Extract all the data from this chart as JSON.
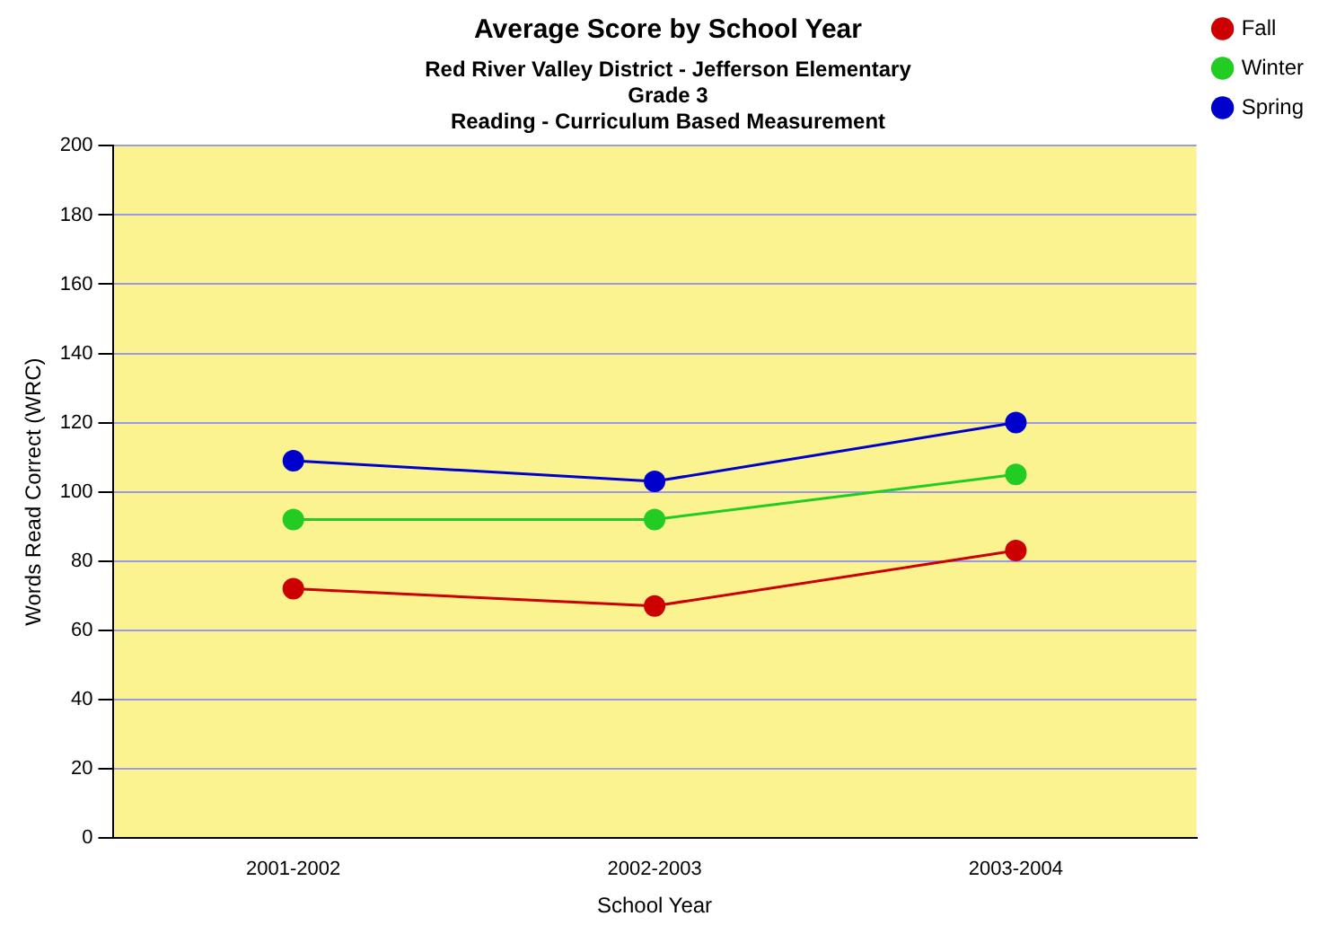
{
  "chart_data": {
    "type": "line",
    "title": "Average Score by School Year",
    "subtitle": "Red River Valley District - Jefferson Elementary\nGrade 3\nReading - Curriculum Based Measurement",
    "xlabel": "School Year",
    "ylabel": "Words Read Correct (WRC)",
    "categories": [
      "2001-2002",
      "2002-2003",
      "2003-2004"
    ],
    "series": [
      {
        "name": "Fall",
        "color": "#cc0000",
        "values": [
          72,
          67,
          83
        ]
      },
      {
        "name": "Winter",
        "color": "#22cc22",
        "values": [
          92,
          92,
          105
        ]
      },
      {
        "name": "Spring",
        "color": "#0000cc",
        "values": [
          109,
          103,
          120
        ]
      }
    ],
    "ylim": [
      0,
      200
    ],
    "yticks": [
      0,
      20,
      40,
      60,
      80,
      100,
      120,
      140,
      160,
      180,
      200
    ],
    "grid": "y",
    "legend": "right",
    "marker": "circle",
    "line_style": "solid"
  }
}
